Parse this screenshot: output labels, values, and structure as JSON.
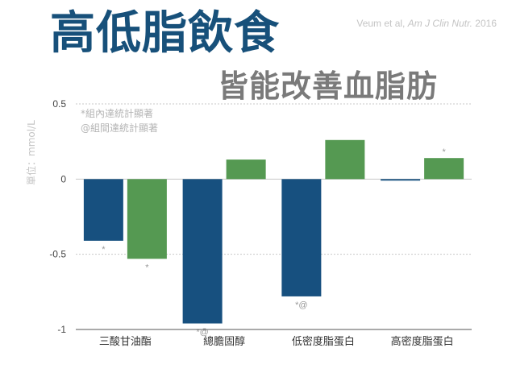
{
  "header": {
    "title": "高低脂飲食",
    "subtitle": "皆能改善血脂肪",
    "citation_authors": "Veum et al, ",
    "citation_journal": "Am J Clin Nutr.",
    "citation_year": " 2016"
  },
  "notes": {
    "within": "*組內達統計顯著",
    "between": "@組間達統計顯著"
  },
  "colors": {
    "series_a": "#17507f",
    "series_b": "#559952",
    "grid": "#c8c8c8",
    "axis": "#555555"
  },
  "chart_data": {
    "type": "bar",
    "ylabel": "單位：mmol/L",
    "ylim": [
      -1,
      0.5
    ],
    "yticks": [
      0.5,
      0,
      -0.5,
      -1
    ],
    "ytick_labels": [
      "0.5",
      "0",
      "-0.5",
      "-1"
    ],
    "grid": true,
    "categories": [
      "三酸甘油酯",
      "總膽固醇",
      "低密度脂蛋白",
      "高密度脂蛋白"
    ],
    "series": [
      {
        "values": [
          -0.41,
          -0.96,
          -0.78,
          -0.01
        ],
        "annotations": [
          "*",
          "*@",
          "*@",
          ""
        ]
      },
      {
        "values": [
          -0.53,
          0.13,
          0.26,
          0.14
        ],
        "annotations": [
          "*",
          "",
          "",
          "*"
        ]
      }
    ]
  }
}
